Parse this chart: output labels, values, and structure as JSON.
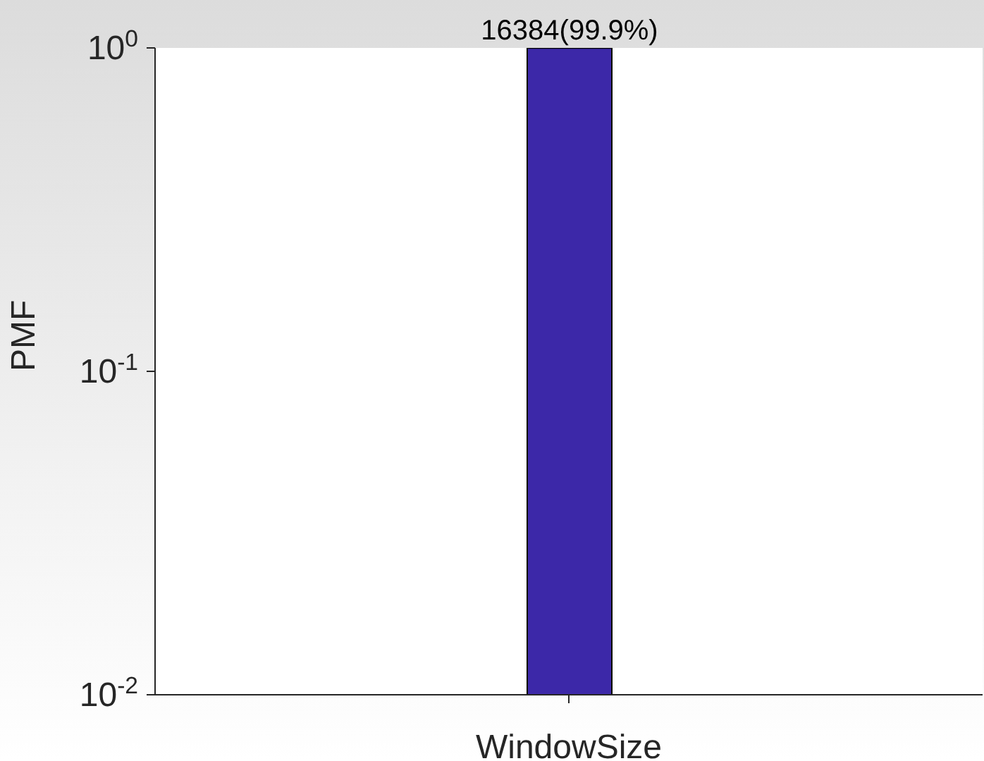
{
  "chart_data": {
    "type": "bar",
    "categories": [
      null
    ],
    "values": [
      0.999
    ],
    "color": "#3c28a8",
    "value_labels": [
      "16384(99.9%)"
    ],
    "xlabel": "WindowSize",
    "ylabel": "PMF",
    "log": "y",
    "ylim": [
      0.01,
      1
    ],
    "yticks": [
      {
        "value": 0.01,
        "label": "10$^{-2}$"
      },
      {
        "value": 0.1,
        "label": "10$^{-1}$"
      },
      {
        "value": 1,
        "label": "10$^{0}$"
      }
    ],
    "grid": false
  }
}
